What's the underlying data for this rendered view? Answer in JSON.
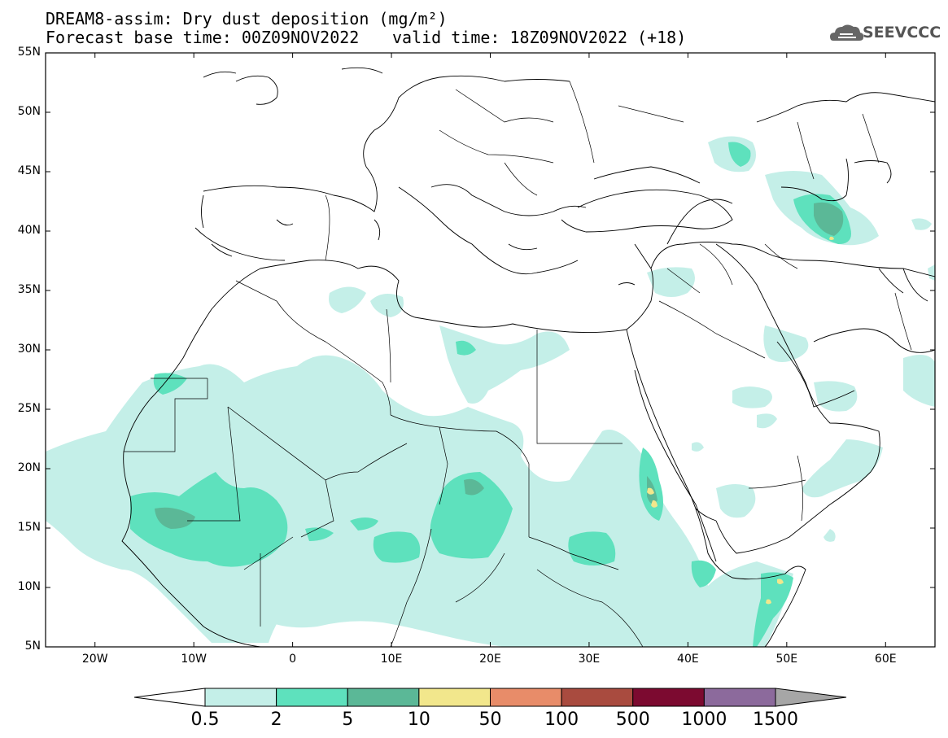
{
  "title": {
    "line1": "DREAM8-assim: Dry dust deposition (mg/m²)",
    "line2": "Forecast base time: 00Z09NOV2022",
    "line3": "valid time: 18Z09NOV2022 (+18)"
  },
  "logo": {
    "text": "SEEVCCC",
    "icon": "cloud-logo-icon"
  },
  "axes": {
    "lat_labels": [
      "55N",
      "50N",
      "45N",
      "40N",
      "35N",
      "30N",
      "25N",
      "20N",
      "15N",
      "10N",
      "5N"
    ],
    "lon_labels": [
      "20W",
      "10W",
      "0",
      "10E",
      "20E",
      "30E",
      "40E",
      "50E",
      "60E"
    ],
    "lat_range": [
      5,
      55
    ],
    "lon_range": [
      -25,
      65
    ]
  },
  "colorbar": {
    "labels": [
      "0.5",
      "2",
      "5",
      "10",
      "50",
      "100",
      "500",
      "1000",
      "1500"
    ],
    "colors": [
      "#ffffff",
      "#c4efe8",
      "#5ee1bd",
      "#5bb897",
      "#f2e78c",
      "#e88c69",
      "#a94b3f",
      "#7c0a30",
      "#8c6a9c",
      "#a6a6a6"
    ]
  },
  "colors": {
    "level1": "#c4efe8",
    "level2": "#5ee1bd",
    "level3": "#5bb897",
    "level4": "#f2e78c"
  }
}
